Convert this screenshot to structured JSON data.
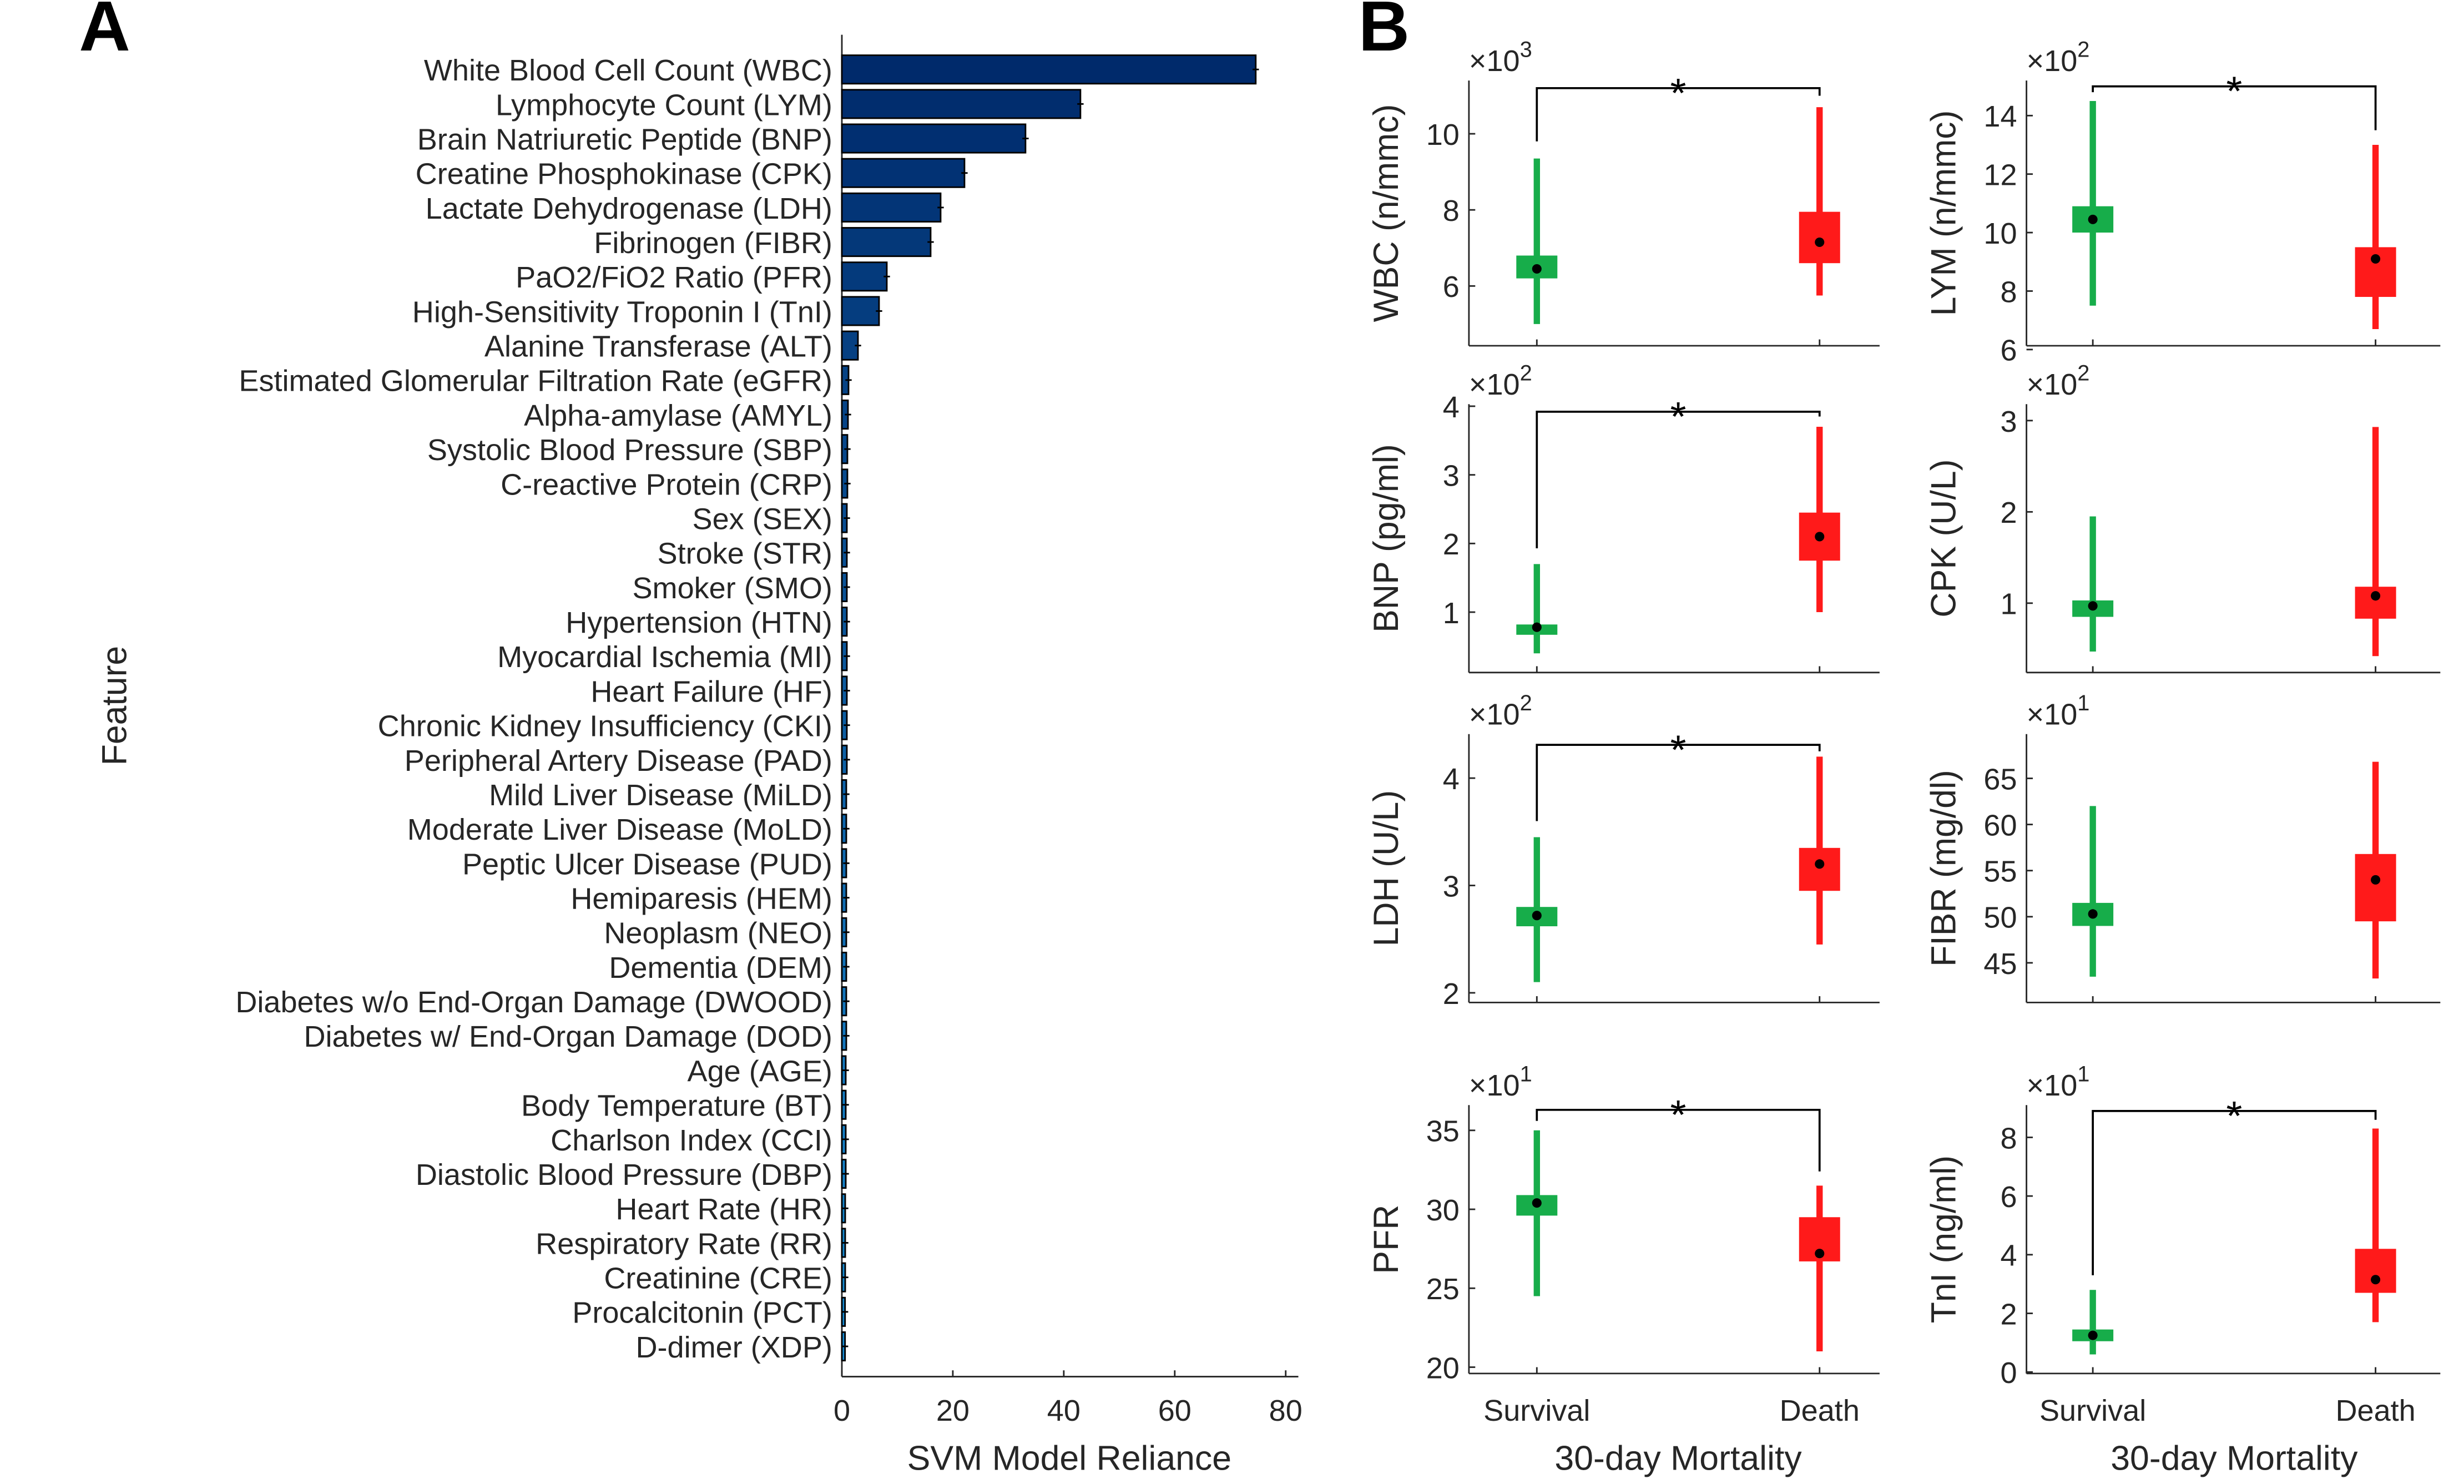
{
  "chart_data": [
    {
      "panel": "A",
      "type": "bar",
      "orientation": "horizontal",
      "xlabel": "SVM Model Reliance",
      "ylabel": "Feature",
      "xlim": [
        0,
        80
      ],
      "xticks": [
        0,
        20,
        40,
        60,
        80
      ],
      "color_start": "#002a6b",
      "color_end": "#1a8fd6",
      "categories": [
        "White Blood Cell Count (WBC)",
        "Lymphocyte Count (LYM)",
        "Brain Natriuretic Peptide (BNP)",
        "Creatine Phosphokinase (CPK)",
        "Lactate Dehydrogenase (LDH)",
        "Fibrinogen (FIBR)",
        "PaO2/FiO2 Ratio (PFR)",
        "High-Sensitivity Troponin I (TnI)",
        "Alanine Transferase (ALT)",
        "Estimated Glomerular Filtration Rate (eGFR)",
        "Alpha-amylase (AMYL)",
        "Systolic Blood Pressure (SBP)",
        "C-reactive Protein (CRP)",
        "Sex (SEX)",
        "Stroke (STR)",
        "Smoker (SMO)",
        "Hypertension  (HTN)",
        "Myocardial Ischemia (MI)",
        "Heart Failure (HF)",
        "Chronic Kidney Insufficiency (CKI)",
        "Peripheral Artery Disease (PAD)",
        "Mild Liver Disease (MiLD)",
        "Moderate Liver Disease (MoLD)",
        "Peptic Ulcer Disease  (PUD)",
        "Hemiparesis (HEM)",
        "Neoplasm (NEO)",
        "Dementia (DEM)",
        "Diabetes  w/o End-Organ Damage (DWOOD)",
        "Diabetes  w/ End-Organ Damage (DOD)",
        "Age (AGE)",
        "Body Temperature (BT)",
        "Charlson Index (CCI)",
        "Diastolic Blood Pressure (DBP)",
        "Heart Rate (HR)",
        "Respiratory Rate (RR)",
        "Creatinine (CRE)",
        "Procalcitonin (PCT)",
        "D-dimer (XDP)"
      ],
      "values": [
        74.6,
        43.0,
        33.1,
        22.1,
        17.8,
        16.0,
        8.1,
        6.7,
        2.9,
        1.2,
        1.1,
        1.0,
        1.0,
        0.9,
        0.9,
        0.9,
        0.9,
        0.9,
        0.9,
        0.9,
        0.9,
        0.8,
        0.8,
        0.8,
        0.8,
        0.8,
        0.8,
        0.8,
        0.8,
        0.7,
        0.7,
        0.7,
        0.7,
        0.6,
        0.6,
        0.6,
        0.5,
        0.5
      ]
    },
    {
      "panel": "B",
      "type": "box",
      "xlabel": "30-day Mortality",
      "groups": [
        "Survival",
        "Death"
      ],
      "group_colors": [
        "#17ad4a",
        "#ff1a1a"
      ],
      "significance_marker": "*",
      "subplots": [
        {
          "ylabel": "WBC (n/mmc)",
          "exponent": "3",
          "ylim": [
            4.43,
            11.4
          ],
          "yticks": [
            6,
            8,
            10
          ],
          "survival": {
            "low": 5.0,
            "q1": 6.2,
            "median": 6.45,
            "q3": 6.8,
            "high": 9.35
          },
          "death": {
            "low": 5.75,
            "q1": 6.6,
            "median": 7.15,
            "q3": 7.95,
            "high": 10.7
          },
          "significance": {
            "y": 11.2,
            "left_to": 9.8,
            "right_to": 11.0
          }
        },
        {
          "ylabel": "LYM (n/mmc)",
          "exponent": "2",
          "ylim": [
            6.13,
            15.2
          ],
          "yticks": [
            6,
            8,
            10,
            12,
            14
          ],
          "survival": {
            "low": 7.5,
            "q1": 10.0,
            "median": 10.45,
            "q3": 10.9,
            "high": 14.5
          },
          "death": {
            "low": 6.7,
            "q1": 7.8,
            "median": 9.1,
            "q3": 9.5,
            "high": 13.0
          },
          "significance": {
            "y": 15.0,
            "left_to": 14.8,
            "right_to": 13.5
          }
        },
        {
          "ylabel": "BNP (pg/ml)",
          "exponent": "2",
          "ylim": [
            0.12,
            4.03
          ],
          "yticks": [
            1,
            2,
            3,
            4
          ],
          "survival": {
            "low": 0.4,
            "q1": 0.67,
            "median": 0.78,
            "q3": 0.82,
            "high": 1.7
          },
          "death": {
            "low": 1.0,
            "q1": 1.75,
            "median": 2.1,
            "q3": 2.45,
            "high": 3.7
          },
          "significance": {
            "y": 3.92,
            "left_to": 1.93,
            "right_to": 3.85
          }
        },
        {
          "ylabel": "CPK (U/L)",
          "exponent": "2",
          "ylim": [
            0.24,
            3.18
          ],
          "yticks": [
            1,
            2,
            3
          ],
          "survival": {
            "low": 0.47,
            "q1": 0.85,
            "median": 0.97,
            "q3": 1.03,
            "high": 1.95
          },
          "death": {
            "low": 0.42,
            "q1": 0.83,
            "median": 1.08,
            "q3": 1.18,
            "high": 2.93
          },
          "significance": null
        },
        {
          "ylabel": "LDH (U/L)",
          "exponent": "2",
          "ylim": [
            1.91,
            4.41
          ],
          "yticks": [
            2,
            3,
            4
          ],
          "survival": {
            "low": 2.1,
            "q1": 2.62,
            "median": 2.72,
            "q3": 2.8,
            "high": 3.45
          },
          "death": {
            "low": 2.45,
            "q1": 2.95,
            "median": 3.2,
            "q3": 3.35,
            "high": 4.2
          },
          "significance": {
            "y": 4.31,
            "left_to": 3.6,
            "right_to": 4.25
          }
        },
        {
          "ylabel": "FIBR (mg/dl)",
          "exponent": "1",
          "ylim": [
            40.7,
            69.8
          ],
          "yticks": [
            45,
            50,
            55,
            60,
            65
          ],
          "survival": {
            "low": 43.5,
            "q1": 49.0,
            "median": 50.3,
            "q3": 51.5,
            "high": 62.0
          },
          "death": {
            "low": 43.3,
            "q1": 49.5,
            "median": 54.0,
            "q3": 56.8,
            "high": 66.8
          },
          "significance": null
        },
        {
          "ylabel": "PFR",
          "exponent": "1",
          "ylim": [
            19.6,
            36.6
          ],
          "yticks": [
            20,
            25,
            30,
            35
          ],
          "survival": {
            "low": 24.5,
            "q1": 29.6,
            "median": 30.4,
            "q3": 30.9,
            "high": 35.0
          },
          "death": {
            "low": 21.0,
            "q1": 26.7,
            "median": 27.2,
            "q3": 29.5,
            "high": 31.5
          },
          "significance": {
            "y": 36.3,
            "left_to": 35.6,
            "right_to": 32.4
          }
        },
        {
          "ylabel": "TnI (ng/ml)",
          "exponent": "1",
          "ylim": [
            -0.05,
            9.1
          ],
          "yticks": [
            0,
            2,
            4,
            6,
            8
          ],
          "survival": {
            "low": 0.6,
            "q1": 1.05,
            "median": 1.25,
            "q3": 1.45,
            "high": 2.8
          },
          "death": {
            "low": 1.7,
            "q1": 2.7,
            "median": 3.15,
            "q3": 4.2,
            "high": 8.3
          },
          "significance": {
            "y": 8.9,
            "left_to": 3.3,
            "right_to": 8.6
          }
        }
      ]
    }
  ],
  "panel_labels": {
    "a": "A",
    "b": "B"
  },
  "exponent_base": "×10"
}
